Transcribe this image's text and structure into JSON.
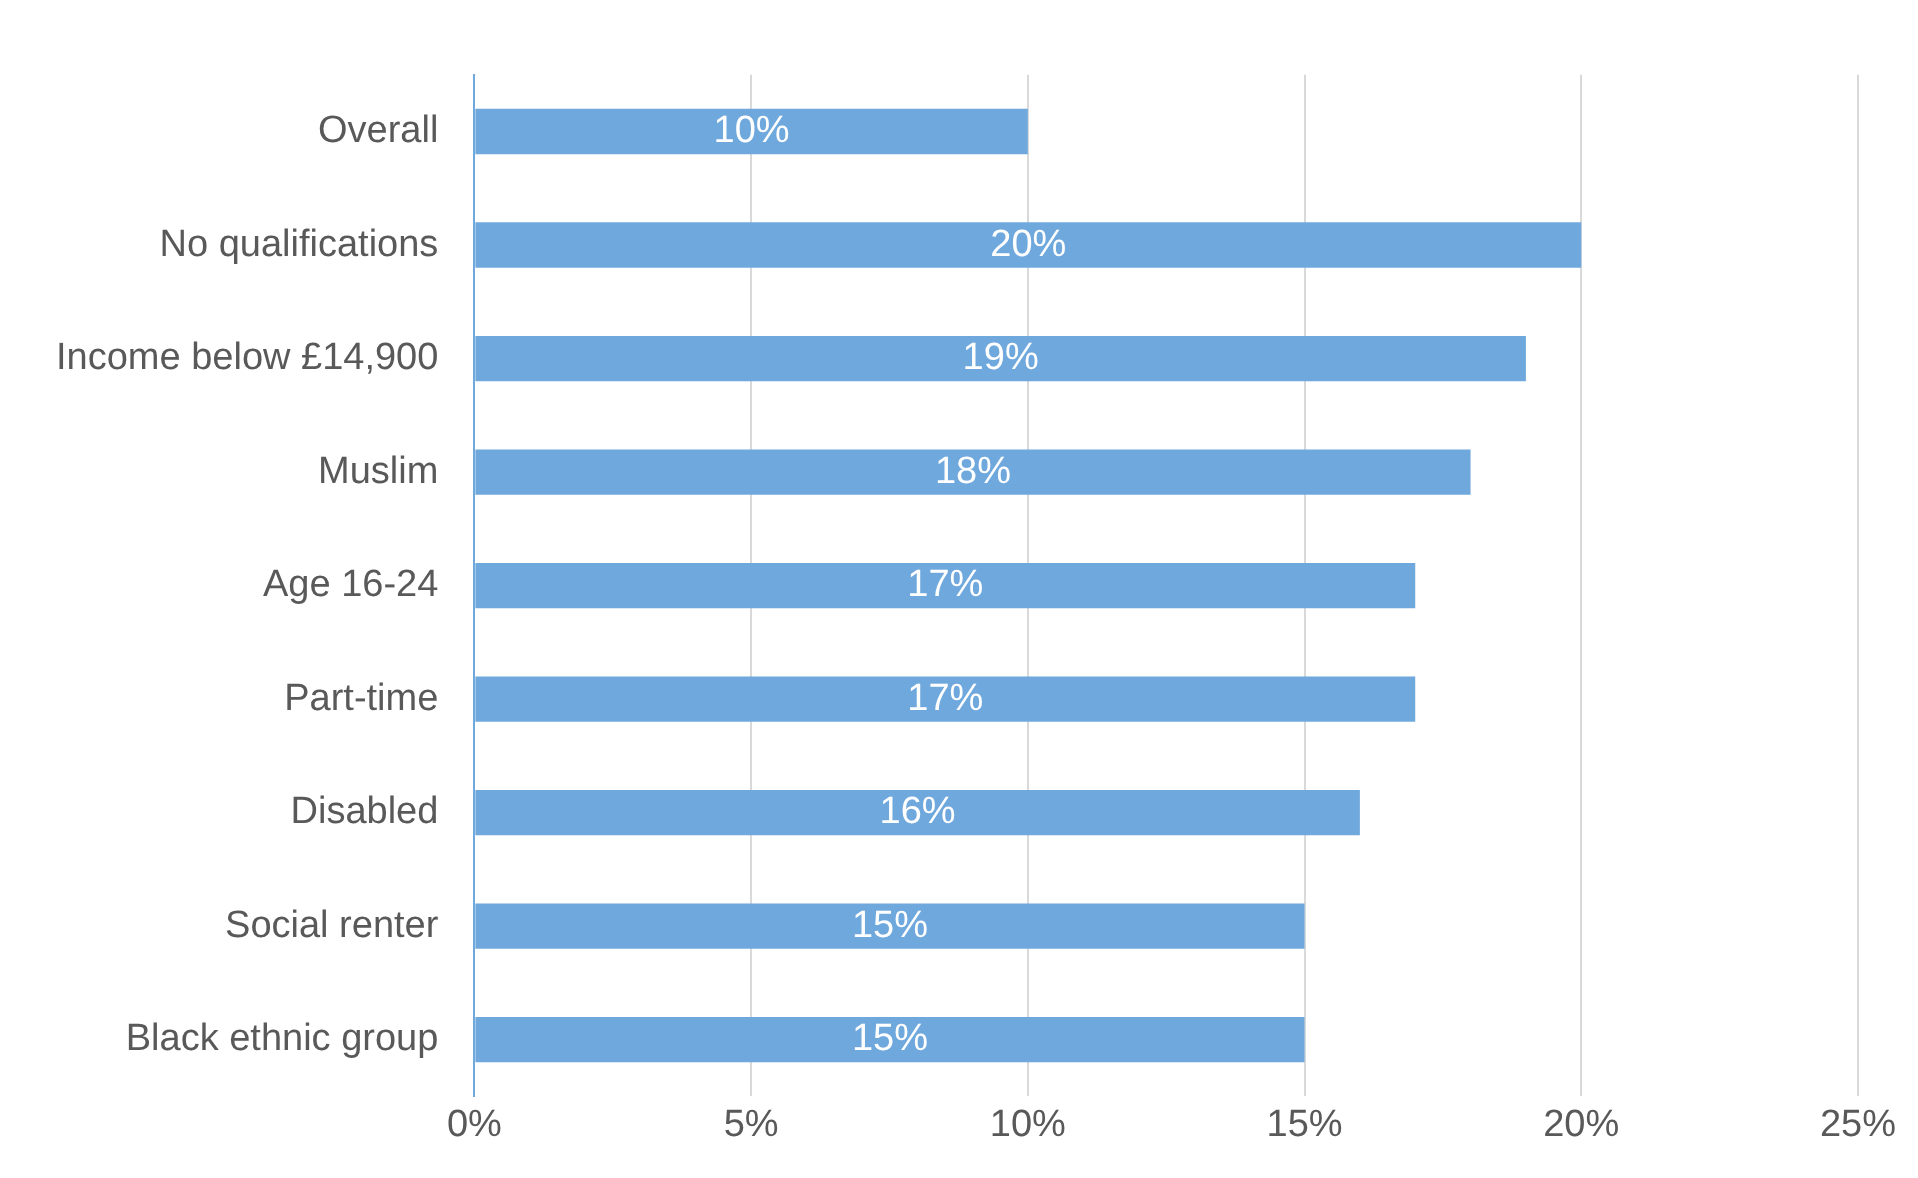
{
  "chart_data": {
    "type": "bar",
    "orientation": "horizontal",
    "categories": [
      "Overall",
      "No qualifications",
      "Income below £14,900",
      "Muslim",
      "Age 16-24",
      "Part-time",
      "Disabled",
      "Social renter",
      "Black ethnic group"
    ],
    "values": [
      10,
      20,
      19,
      18,
      17,
      17,
      16,
      15,
      15
    ],
    "value_labels": [
      "10%",
      "20%",
      "19%",
      "18%",
      "17%",
      "17%",
      "16%",
      "15%",
      "15%"
    ],
    "color": "#6fa8dc",
    "xlim": [
      0,
      25
    ],
    "xticks": [
      {
        "value": 0,
        "label": "0%"
      },
      {
        "value": 5,
        "label": "5%"
      },
      {
        "value": 10,
        "label": "10%"
      },
      {
        "value": 15,
        "label": "15%"
      },
      {
        "value": 20,
        "label": "20%"
      },
      {
        "value": 25,
        "label": "25%"
      }
    ],
    "grid": "x"
  }
}
